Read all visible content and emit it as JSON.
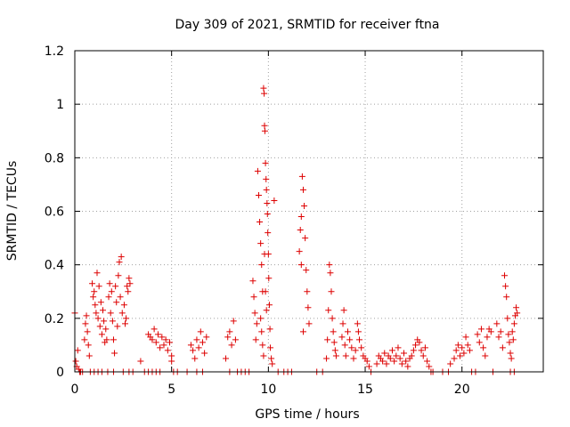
{
  "chart_data": {
    "type": "scatter",
    "title": "Day 309 of 2021, SRMTID for receiver ftna",
    "xlabel": "GPS time / hours",
    "ylabel": "SRMTID / TECUs",
    "xlim": [
      0,
      24.2
    ],
    "ylim": [
      0,
      1.2
    ],
    "x_ticks": [
      0,
      5,
      10,
      15,
      20
    ],
    "x_tick_labels": [
      "0",
      "5",
      "10",
      "15",
      "20"
    ],
    "y_ticks": [
      0,
      0.2,
      0.4,
      0.6,
      0.8,
      1.0,
      1.2
    ],
    "y_tick_labels": [
      "0",
      "0.2",
      "0.4",
      "0.6",
      "0.8",
      "1",
      "1.2"
    ],
    "grid": true,
    "marker": "+",
    "series": [
      {
        "name": "SRMTID",
        "color": "#dd0000",
        "points": [
          [
            0.0,
            0.22
          ],
          [
            0.05,
            0.04
          ],
          [
            0.1,
            0.02
          ],
          [
            0.15,
            0.08
          ],
          [
            0.2,
            0.01
          ],
          [
            0.25,
            0.0
          ],
          [
            0.4,
            0.0
          ],
          [
            0.5,
            0.12
          ],
          [
            0.55,
            0.18
          ],
          [
            0.6,
            0.21
          ],
          [
            0.65,
            0.15
          ],
          [
            0.7,
            0.1
          ],
          [
            0.75,
            0.06
          ],
          [
            0.9,
            0.33
          ],
          [
            0.95,
            0.28
          ],
          [
            1.0,
            0.3
          ],
          [
            1.05,
            0.25
          ],
          [
            1.1,
            0.22
          ],
          [
            1.15,
            0.37
          ],
          [
            1.2,
            0.2
          ],
          [
            1.25,
            0.32
          ],
          [
            1.3,
            0.17
          ],
          [
            1.35,
            0.26
          ],
          [
            1.4,
            0.14
          ],
          [
            1.45,
            0.23
          ],
          [
            1.5,
            0.19
          ],
          [
            1.55,
            0.11
          ],
          [
            1.6,
            0.16
          ],
          [
            1.65,
            0.12
          ],
          [
            1.75,
            0.28
          ],
          [
            1.8,
            0.33
          ],
          [
            1.85,
            0.22
          ],
          [
            1.9,
            0.3
          ],
          [
            1.95,
            0.19
          ],
          [
            2.0,
            0.12
          ],
          [
            2.05,
            0.07
          ],
          [
            2.1,
            0.32
          ],
          [
            2.15,
            0.26
          ],
          [
            2.2,
            0.17
          ],
          [
            2.25,
            0.36
          ],
          [
            2.3,
            0.41
          ],
          [
            2.35,
            0.28
          ],
          [
            2.4,
            0.43
          ],
          [
            2.45,
            0.22
          ],
          [
            2.55,
            0.25
          ],
          [
            2.6,
            0.18
          ],
          [
            2.65,
            0.2
          ],
          [
            2.7,
            0.32
          ],
          [
            2.75,
            0.3
          ],
          [
            2.8,
            0.35
          ],
          [
            2.85,
            0.33
          ],
          [
            0.3,
            0.0
          ],
          [
            0.8,
            0.0
          ],
          [
            1.0,
            0.0
          ],
          [
            1.2,
            0.0
          ],
          [
            1.4,
            0.0
          ],
          [
            1.7,
            0.0
          ],
          [
            2.0,
            0.0
          ],
          [
            2.5,
            0.0
          ],
          [
            2.8,
            0.0
          ],
          [
            3.0,
            0.0
          ],
          [
            3.4,
            0.04
          ],
          [
            3.6,
            0.0
          ],
          [
            3.8,
            0.0
          ],
          [
            4.0,
            0.0
          ],
          [
            4.2,
            0.0
          ],
          [
            4.4,
            0.0
          ],
          [
            3.8,
            0.14
          ],
          [
            3.9,
            0.13
          ],
          [
            4.0,
            0.12
          ],
          [
            4.1,
            0.16
          ],
          [
            4.2,
            0.11
          ],
          [
            4.3,
            0.14
          ],
          [
            4.4,
            0.09
          ],
          [
            4.5,
            0.13
          ],
          [
            4.6,
            0.1
          ],
          [
            4.7,
            0.12
          ],
          [
            4.8,
            0.08
          ],
          [
            4.9,
            0.11
          ],
          [
            5.0,
            0.06
          ],
          [
            5.0,
            0.04
          ],
          [
            5.1,
            0.0
          ],
          [
            5.3,
            0.0
          ],
          [
            5.8,
            0.0
          ],
          [
            6.0,
            0.1
          ],
          [
            6.1,
            0.08
          ],
          [
            6.2,
            0.05
          ],
          [
            6.3,
            0.12
          ],
          [
            6.4,
            0.09
          ],
          [
            6.5,
            0.15
          ],
          [
            6.6,
            0.11
          ],
          [
            6.7,
            0.07
          ],
          [
            6.8,
            0.13
          ],
          [
            6.3,
            0.0
          ],
          [
            6.6,
            0.0
          ],
          [
            7.8,
            0.05
          ],
          [
            7.9,
            0.13
          ],
          [
            8.0,
            0.15
          ],
          [
            8.1,
            0.1
          ],
          [
            8.2,
            0.19
          ],
          [
            8.3,
            0.12
          ],
          [
            8.0,
            0.0
          ],
          [
            8.4,
            0.0
          ],
          [
            8.6,
            0.0
          ],
          [
            8.8,
            0.0
          ],
          [
            9.0,
            0.0
          ],
          [
            9.2,
            0.34
          ],
          [
            9.25,
            0.28
          ],
          [
            9.3,
            0.22
          ],
          [
            9.35,
            0.12
          ],
          [
            9.4,
            0.18
          ],
          [
            9.45,
            0.75
          ],
          [
            9.5,
            0.66
          ],
          [
            9.55,
            0.56
          ],
          [
            9.6,
            0.48
          ],
          [
            9.65,
            0.4
          ],
          [
            9.7,
            0.3
          ],
          [
            9.75,
            1.06
          ],
          [
            9.78,
            1.04
          ],
          [
            9.8,
            0.92
          ],
          [
            9.82,
            0.9
          ],
          [
            9.85,
            0.78
          ],
          [
            9.88,
            0.72
          ],
          [
            9.9,
            0.68
          ],
          [
            9.93,
            0.63
          ],
          [
            9.95,
            0.59
          ],
          [
            9.97,
            0.52
          ],
          [
            10.0,
            0.44
          ],
          [
            10.02,
            0.35
          ],
          [
            10.05,
            0.25
          ],
          [
            10.08,
            0.16
          ],
          [
            10.1,
            0.09
          ],
          [
            10.15,
            0.05
          ],
          [
            10.2,
            0.03
          ],
          [
            10.3,
            0.64
          ],
          [
            9.6,
            0.2
          ],
          [
            9.65,
            0.15
          ],
          [
            9.7,
            0.1
          ],
          [
            9.75,
            0.06
          ],
          [
            9.8,
            0.44
          ],
          [
            9.85,
            0.3
          ],
          [
            9.9,
            0.23
          ],
          [
            10.5,
            0.0
          ],
          [
            10.8,
            0.0
          ],
          [
            11.0,
            0.0
          ],
          [
            11.2,
            0.0
          ],
          [
            11.6,
            0.45
          ],
          [
            11.65,
            0.53
          ],
          [
            11.7,
            0.58
          ],
          [
            11.75,
            0.73
          ],
          [
            11.8,
            0.68
          ],
          [
            11.85,
            0.62
          ],
          [
            11.9,
            0.5
          ],
          [
            11.95,
            0.38
          ],
          [
            12.0,
            0.3
          ],
          [
            12.05,
            0.24
          ],
          [
            12.1,
            0.18
          ],
          [
            11.7,
            0.4
          ],
          [
            11.8,
            0.15
          ],
          [
            12.5,
            0.0
          ],
          [
            12.8,
            0.0
          ],
          [
            13.0,
            0.05
          ],
          [
            13.05,
            0.12
          ],
          [
            13.1,
            0.23
          ],
          [
            13.15,
            0.4
          ],
          [
            13.2,
            0.37
          ],
          [
            13.25,
            0.3
          ],
          [
            13.3,
            0.2
          ],
          [
            13.35,
            0.15
          ],
          [
            13.4,
            0.11
          ],
          [
            13.45,
            0.08
          ],
          [
            13.5,
            0.06
          ],
          [
            13.8,
            0.13
          ],
          [
            13.85,
            0.18
          ],
          [
            13.9,
            0.23
          ],
          [
            13.95,
            0.1
          ],
          [
            14.0,
            0.06
          ],
          [
            14.1,
            0.15
          ],
          [
            14.2,
            0.12
          ],
          [
            14.3,
            0.09
          ],
          [
            14.4,
            0.05
          ],
          [
            14.5,
            0.08
          ],
          [
            14.6,
            0.18
          ],
          [
            14.65,
            0.15
          ],
          [
            14.7,
            0.12
          ],
          [
            14.8,
            0.09
          ],
          [
            14.9,
            0.06
          ],
          [
            15.0,
            0.05
          ],
          [
            15.1,
            0.04
          ],
          [
            15.2,
            0.02
          ],
          [
            15.3,
            0.0
          ],
          [
            15.6,
            0.03
          ],
          [
            15.7,
            0.06
          ],
          [
            15.8,
            0.05
          ],
          [
            15.9,
            0.04
          ],
          [
            16.0,
            0.07
          ],
          [
            16.1,
            0.03
          ],
          [
            16.2,
            0.06
          ],
          [
            16.3,
            0.05
          ],
          [
            16.4,
            0.08
          ],
          [
            16.5,
            0.04
          ],
          [
            16.6,
            0.06
          ],
          [
            16.7,
            0.09
          ],
          [
            16.8,
            0.05
          ],
          [
            16.9,
            0.03
          ],
          [
            17.0,
            0.07
          ],
          [
            17.1,
            0.04
          ],
          [
            17.2,
            0.02
          ],
          [
            17.3,
            0.05
          ],
          [
            17.4,
            0.06
          ],
          [
            17.5,
            0.08
          ],
          [
            17.6,
            0.1
          ],
          [
            17.7,
            0.12
          ],
          [
            17.8,
            0.11
          ],
          [
            17.9,
            0.08
          ],
          [
            18.0,
            0.06
          ],
          [
            18.1,
            0.09
          ],
          [
            18.2,
            0.04
          ],
          [
            18.3,
            0.02
          ],
          [
            18.4,
            0.0
          ],
          [
            18.5,
            0.0
          ],
          [
            19.0,
            0.0
          ],
          [
            19.3,
            0.0
          ],
          [
            19.4,
            0.03
          ],
          [
            19.6,
            0.05
          ],
          [
            19.7,
            0.08
          ],
          [
            19.8,
            0.1
          ],
          [
            19.9,
            0.06
          ],
          [
            20.0,
            0.09
          ],
          [
            20.1,
            0.07
          ],
          [
            20.2,
            0.13
          ],
          [
            20.3,
            0.1
          ],
          [
            20.4,
            0.08
          ],
          [
            20.5,
            0.0
          ],
          [
            20.7,
            0.0
          ],
          [
            20.8,
            0.14
          ],
          [
            20.9,
            0.11
          ],
          [
            21.0,
            0.16
          ],
          [
            21.1,
            0.09
          ],
          [
            21.2,
            0.06
          ],
          [
            21.3,
            0.13
          ],
          [
            21.4,
            0.16
          ],
          [
            21.5,
            0.15
          ],
          [
            21.6,
            0.0
          ],
          [
            21.8,
            0.18
          ],
          [
            21.9,
            0.13
          ],
          [
            22.0,
            0.15
          ],
          [
            22.1,
            0.09
          ],
          [
            22.2,
            0.36
          ],
          [
            22.25,
            0.32
          ],
          [
            22.3,
            0.28
          ],
          [
            22.35,
            0.2
          ],
          [
            22.4,
            0.14
          ],
          [
            22.45,
            0.11
          ],
          [
            22.5,
            0.07
          ],
          [
            22.55,
            0.05
          ],
          [
            22.6,
            0.15
          ],
          [
            22.65,
            0.12
          ],
          [
            22.7,
            0.18
          ],
          [
            22.75,
            0.21
          ],
          [
            22.8,
            0.24
          ],
          [
            22.85,
            0.22
          ],
          [
            22.5,
            0.0
          ],
          [
            22.7,
            0.0
          ]
        ]
      }
    ]
  }
}
